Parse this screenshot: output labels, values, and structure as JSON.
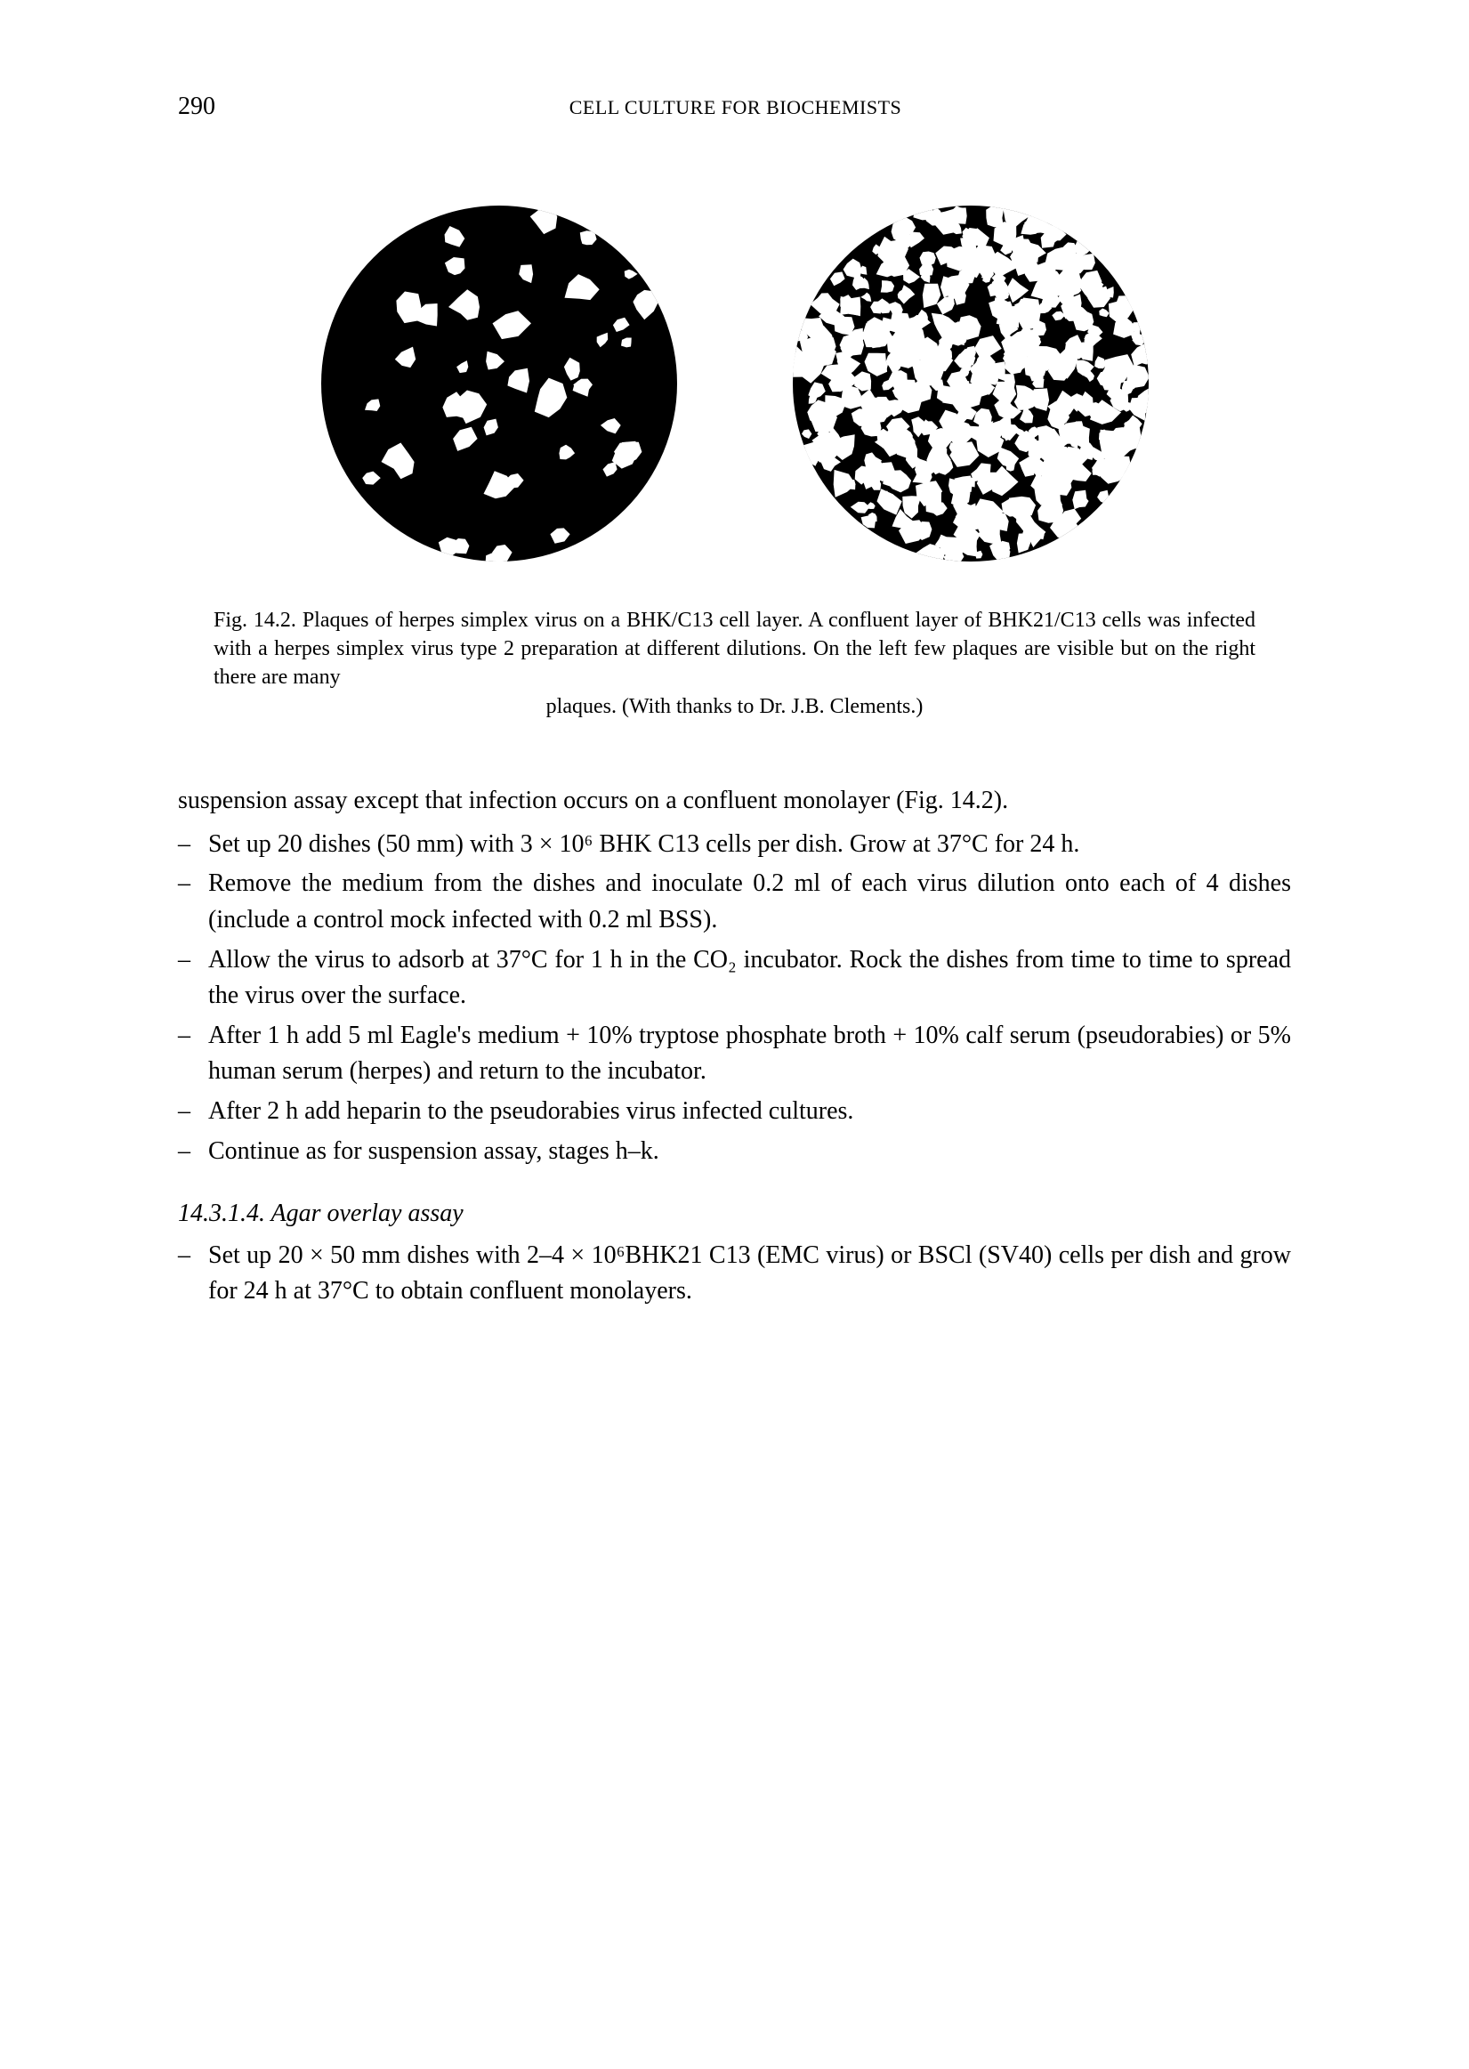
{
  "header": {
    "page_number": "290",
    "running_title": "CELL CULTURE FOR BIOCHEMISTS"
  },
  "figure": {
    "left_dish": {
      "radius": 200,
      "fill": "#000000",
      "plaque_fill": "#ffffff",
      "plaque_count": 42,
      "plaque_size_min": 6,
      "plaque_size_max": 18
    },
    "right_dish": {
      "radius": 200,
      "fill": "#000000",
      "plaque_fill": "#ffffff",
      "plaque_count": 480,
      "plaque_size_min": 5,
      "plaque_size_max": 16
    },
    "caption_lines": [
      "Fig. 14.2. Plaques of herpes simplex virus on a BHK/C13 cell layer. A confluent layer of BHK21/C13 cells was infected with a herpes simplex virus type 2 preparation at different dilutions. On the left few plaques are visible but on the right there are many",
      "plaques. (With thanks to Dr. J.B. Clements.)"
    ]
  },
  "body": {
    "intro": "suspension assay except that infection occurs on a confluent monolayer (Fig. 14.2).",
    "steps": [
      "Set up 20 dishes (50 mm) with 3 × 10⁶ BHK C13 cells per dish. Grow at 37°C for 24 h.",
      "Remove the medium from the dishes and inoculate 0.2 ml of each virus dilution onto each of 4 dishes (include a control mock infected with 0.2 ml BSS).",
      "Allow the virus to adsorb at 37°C for 1 h in the CO₂ incubator. Rock the dishes from time to time to spread the virus over the surface.",
      "After 1 h add 5 ml Eagle's medium + 10% tryptose phosphate broth + 10% calf serum (pseudorabies) or 5% human serum (herpes) and return to the incubator.",
      "After 2 h add heparin to the pseudorabies virus infected cultures.",
      "Continue as for suspension assay, stages h–k."
    ]
  },
  "section": {
    "heading": "14.3.1.4.  Agar overlay assay",
    "steps": [
      "Set up 20 × 50 mm dishes with 2–4 × 10⁶BHK21 C13 (EMC virus) or BSCl (SV40) cells per dish and grow for 24 h at 37°C to obtain confluent monolayers."
    ]
  },
  "style": {
    "background_color": "#ffffff",
    "text_color": "#000000",
    "body_fontsize": 28,
    "caption_fontsize": 24,
    "header_fontsize": 22
  }
}
